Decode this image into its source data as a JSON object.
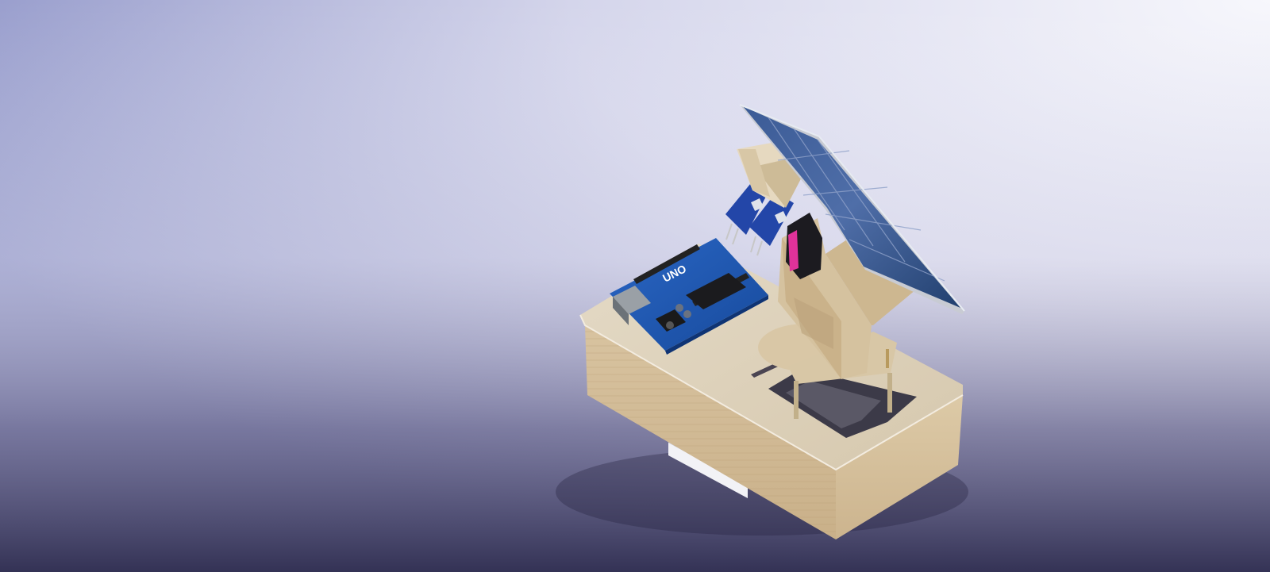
{
  "scene": {
    "background_colors": {
      "top_left": "#8e95c9",
      "top_right": "#f4f4fb",
      "mid": "#d9d8ea",
      "bottom": "#3d3b5e"
    },
    "wood_color": "#d9c7a3",
    "board_color": "#1d56b0",
    "panel_color": "#2c4c84",
    "servo_accent": "#e0329a",
    "board_text": "UNO"
  }
}
